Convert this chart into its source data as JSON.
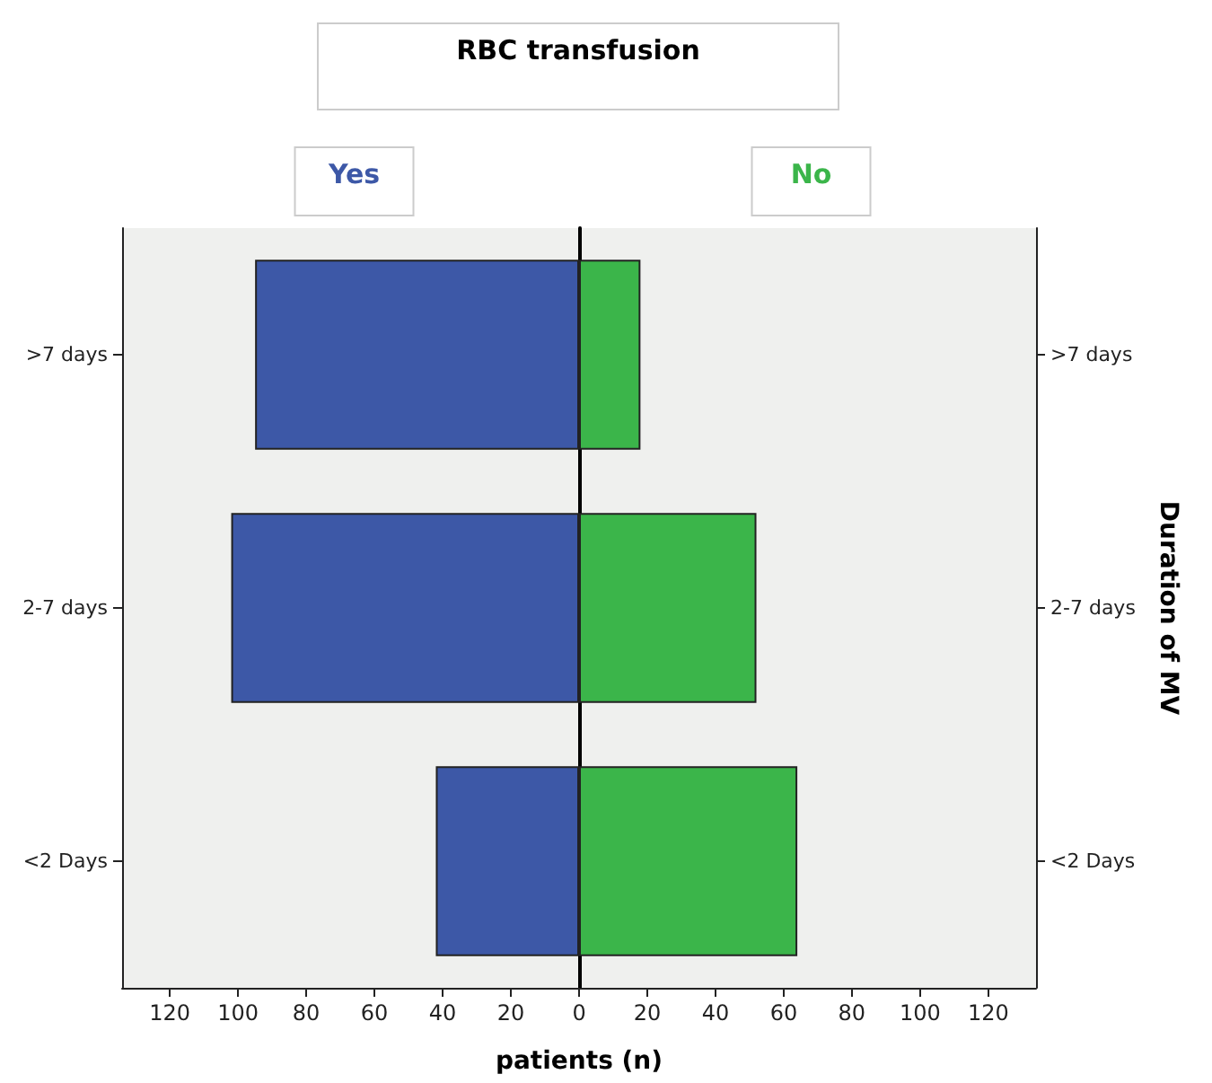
{
  "chart_data": {
    "type": "bar",
    "orientation": "horizontal",
    "stacked": true,
    "legend_title": "RBC transfusion",
    "xlabel": "patients (n)",
    "ylabel": "Duration of MV",
    "categories": [
      ">7 days",
      "2-7 days",
      "<2 Days"
    ],
    "series": [
      {
        "name": "Yes",
        "color": "#3d58a7",
        "values": [
          -95,
          -102,
          -42
        ]
      },
      {
        "name": "No",
        "color": "#3bb54a",
        "values": [
          18,
          52,
          64
        ]
      }
    ],
    "xlim": [
      -134,
      134
    ],
    "xticks": [
      {
        "value": -120,
        "label": "120"
      },
      {
        "value": -100,
        "label": "100"
      },
      {
        "value": -80,
        "label": "80"
      },
      {
        "value": -60,
        "label": "60"
      },
      {
        "value": -40,
        "label": "40"
      },
      {
        "value": -20,
        "label": "20"
      },
      0,
      20,
      40,
      60,
      80,
      100,
      120
    ]
  }
}
